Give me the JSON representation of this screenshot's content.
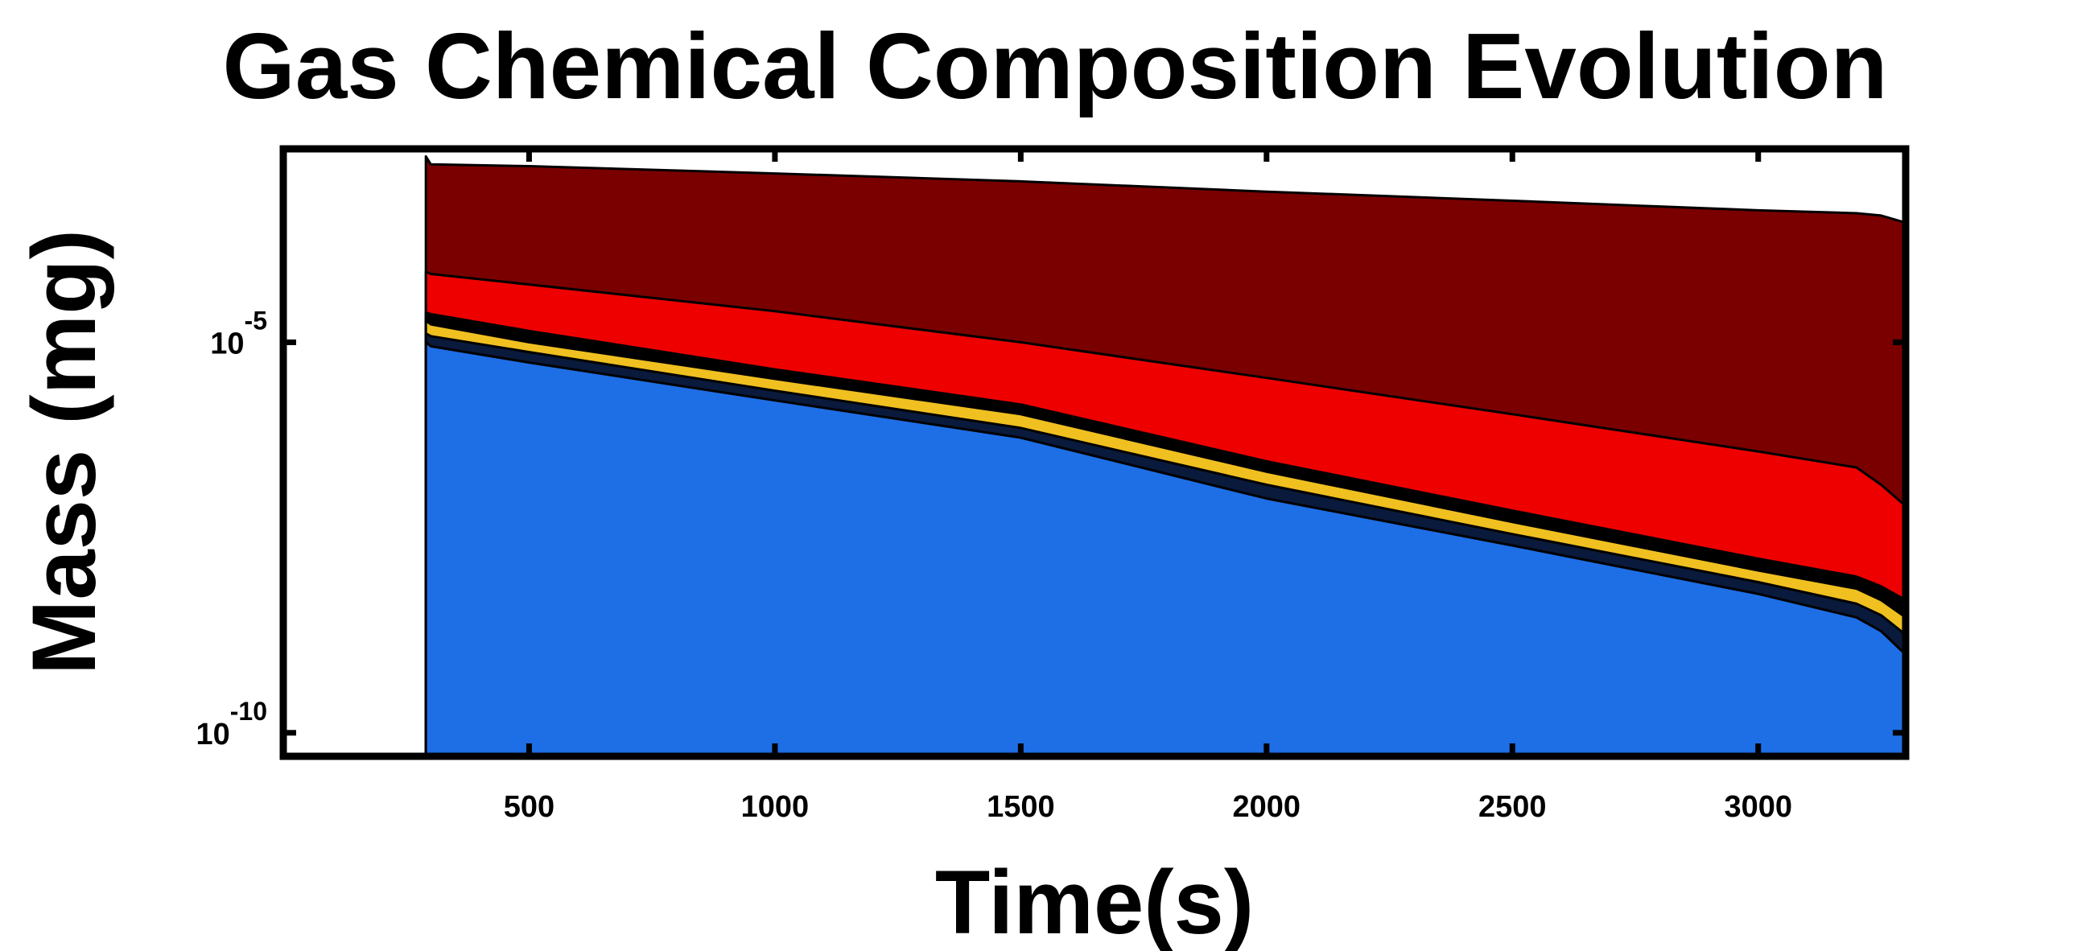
{
  "chart_data": {
    "type": "area",
    "title": "Gas Chemical Composition Evolution",
    "xlabel": "Time(s)",
    "ylabel": "Mass (mg)",
    "y_scale": "log",
    "xlim": [
      0,
      3300
    ],
    "ylim": [
      5e-11,
      0.003
    ],
    "x_ticks": [
      500,
      1000,
      1500,
      2000,
      2500,
      3000
    ],
    "x_tick_labels": [
      "500",
      "1000",
      "1500",
      "2000",
      "2500",
      "3000"
    ],
    "y_ticks": [
      {
        "value": 1e-05,
        "base": "10",
        "exponent": "-5"
      },
      {
        "value": 1e-10,
        "base": "10",
        "exponent": "-10"
      }
    ],
    "grid": false,
    "legend": "none",
    "stacked": true,
    "x": [
      290,
      300,
      500,
      1000,
      1500,
      2000,
      2500,
      3000,
      3200,
      3250,
      3300
    ],
    "series": [
      {
        "color": "#1e6ee6",
        "outline": "#000000",
        "values": [
          1e-05,
          8.9e-06,
          5.5e-06,
          1.8e-06,
          6e-07,
          1e-07,
          2.5e-08,
          6e-09,
          3e-09,
          2e-09,
          1e-09
        ]
      },
      {
        "color": "#0a1a3c",
        "outline": "#000000",
        "values": [
          1.3e-05,
          1.2e-05,
          7.5e-06,
          2.4e-06,
          8e-07,
          1.5e-07,
          3.5e-08,
          8.5e-09,
          4.5e-09,
          3.2e-09,
          1.8e-09
        ]
      },
      {
        "color": "#f0c020",
        "outline": "#000000",
        "values": [
          1.9e-05,
          1.7e-05,
          1e-05,
          3.4e-06,
          1.2e-06,
          2.2e-07,
          5e-08,
          1.2e-08,
          7e-09,
          5e-09,
          3e-09
        ]
      },
      {
        "color": "#000000",
        "outline": "#000000",
        "values": [
          2.4e-05,
          2.3e-05,
          1.4e-05,
          4.5e-06,
          1.6e-06,
          3e-07,
          7e-08,
          1.7e-08,
          1e-08,
          7.5e-09,
          5e-09
        ]
      },
      {
        "color": "#ee0000",
        "outline": "#000000",
        "values": [
          8e-05,
          7.5e-05,
          5.5e-05,
          2.5e-05,
          1e-05,
          3.5e-06,
          1.2e-06,
          4e-07,
          2.5e-07,
          1.5e-07,
          8e-08
        ]
      },
      {
        "color": "#7a0000",
        "outline": "#000000",
        "values": [
          0.0024,
          0.0019,
          0.0018,
          0.00145,
          0.00115,
          0.00085,
          0.00065,
          0.00049,
          0.00045,
          0.00042,
          0.00034
        ]
      }
    ]
  }
}
